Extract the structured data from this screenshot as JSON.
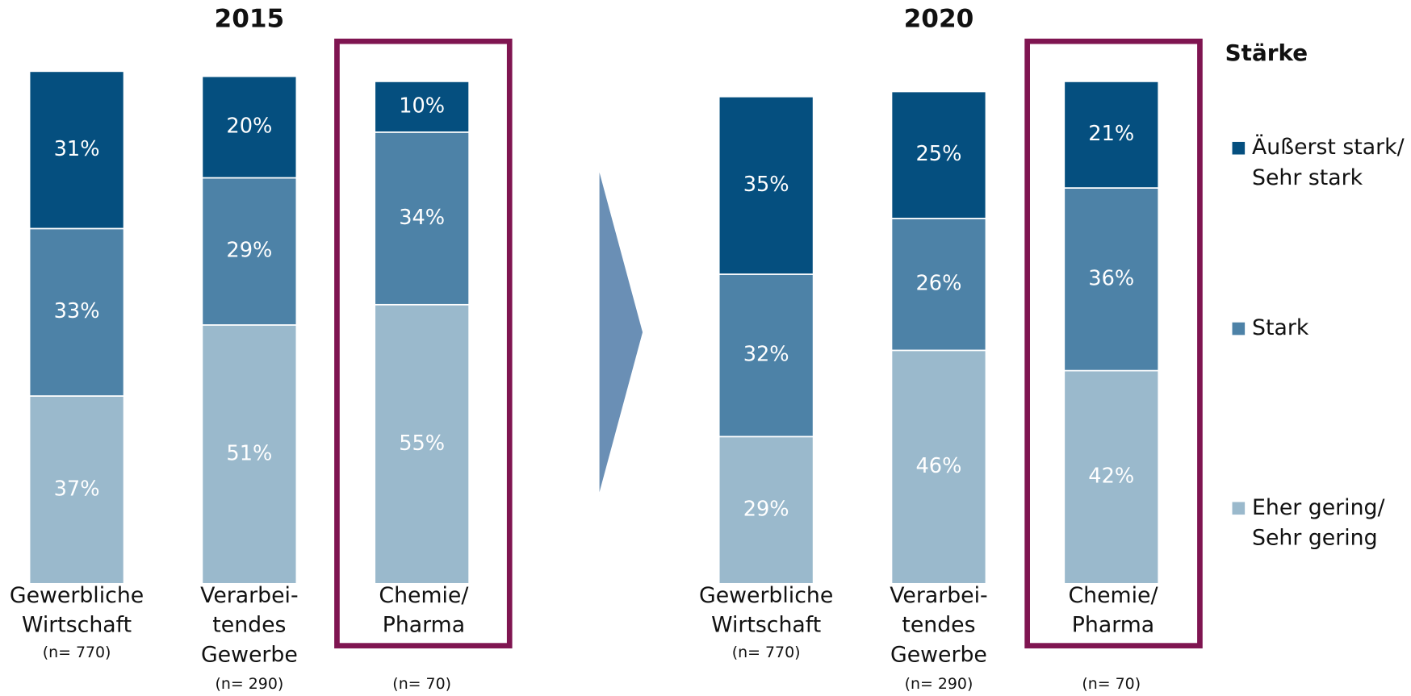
{
  "chart_data": [
    {
      "type": "bar",
      "stacked": true,
      "title": "2015",
      "categories": [
        [
          "Gewerbliche",
          "Wirtschaft"
        ],
        [
          "Verarbei-",
          "tendes",
          "Gewerbe"
        ],
        [
          "Chemie/",
          "Pharma"
        ]
      ],
      "sample_sizes": [
        "(n= 770)",
        "(n= 290)",
        "(n= 70)"
      ],
      "ylim": [
        0,
        100
      ],
      "series": [
        {
          "name": [
            "Eher gering/",
            "Sehr gering"
          ],
          "color": "#9ab9cc",
          "values": [
            37,
            51,
            55
          ],
          "value_labels": [
            "37%",
            "51%",
            "55%"
          ]
        },
        {
          "name": [
            "Stark"
          ],
          "color": "#4d82a7",
          "values": [
            33,
            29,
            34
          ],
          "value_labels": [
            "33%",
            "29%",
            "34%"
          ]
        },
        {
          "name": [
            "Äußerst stark/",
            "Sehr stark"
          ],
          "color": "#054f7f",
          "values": [
            31,
            20,
            10
          ],
          "value_labels": [
            "31%",
            "20%",
            "10%"
          ]
        }
      ]
    },
    {
      "type": "bar",
      "stacked": true,
      "title": "2020",
      "categories": [
        [
          "Gewerbliche",
          "Wirtschaft"
        ],
        [
          "Verarbei-",
          "tendes",
          "Gewerbe"
        ],
        [
          "Chemie/",
          "Pharma"
        ]
      ],
      "sample_sizes": [
        "(n= 770)",
        "(n= 290)",
        "(n= 70)"
      ],
      "ylim": [
        0,
        100
      ],
      "series": [
        {
          "color": "#9ab9cc",
          "values": [
            29,
            46,
            42
          ],
          "value_labels": [
            "29%",
            "46%",
            "42%"
          ]
        },
        {
          "color": "#4d82a7",
          "values": [
            32,
            26,
            36
          ],
          "value_labels": [
            "32%",
            "26%",
            "36%"
          ]
        },
        {
          "color": "#054f7f",
          "values": [
            35,
            25,
            21
          ],
          "value_labels": [
            "35%",
            "25%",
            "21%"
          ]
        }
      ]
    }
  ],
  "legend": {
    "title": "Stärke"
  }
}
